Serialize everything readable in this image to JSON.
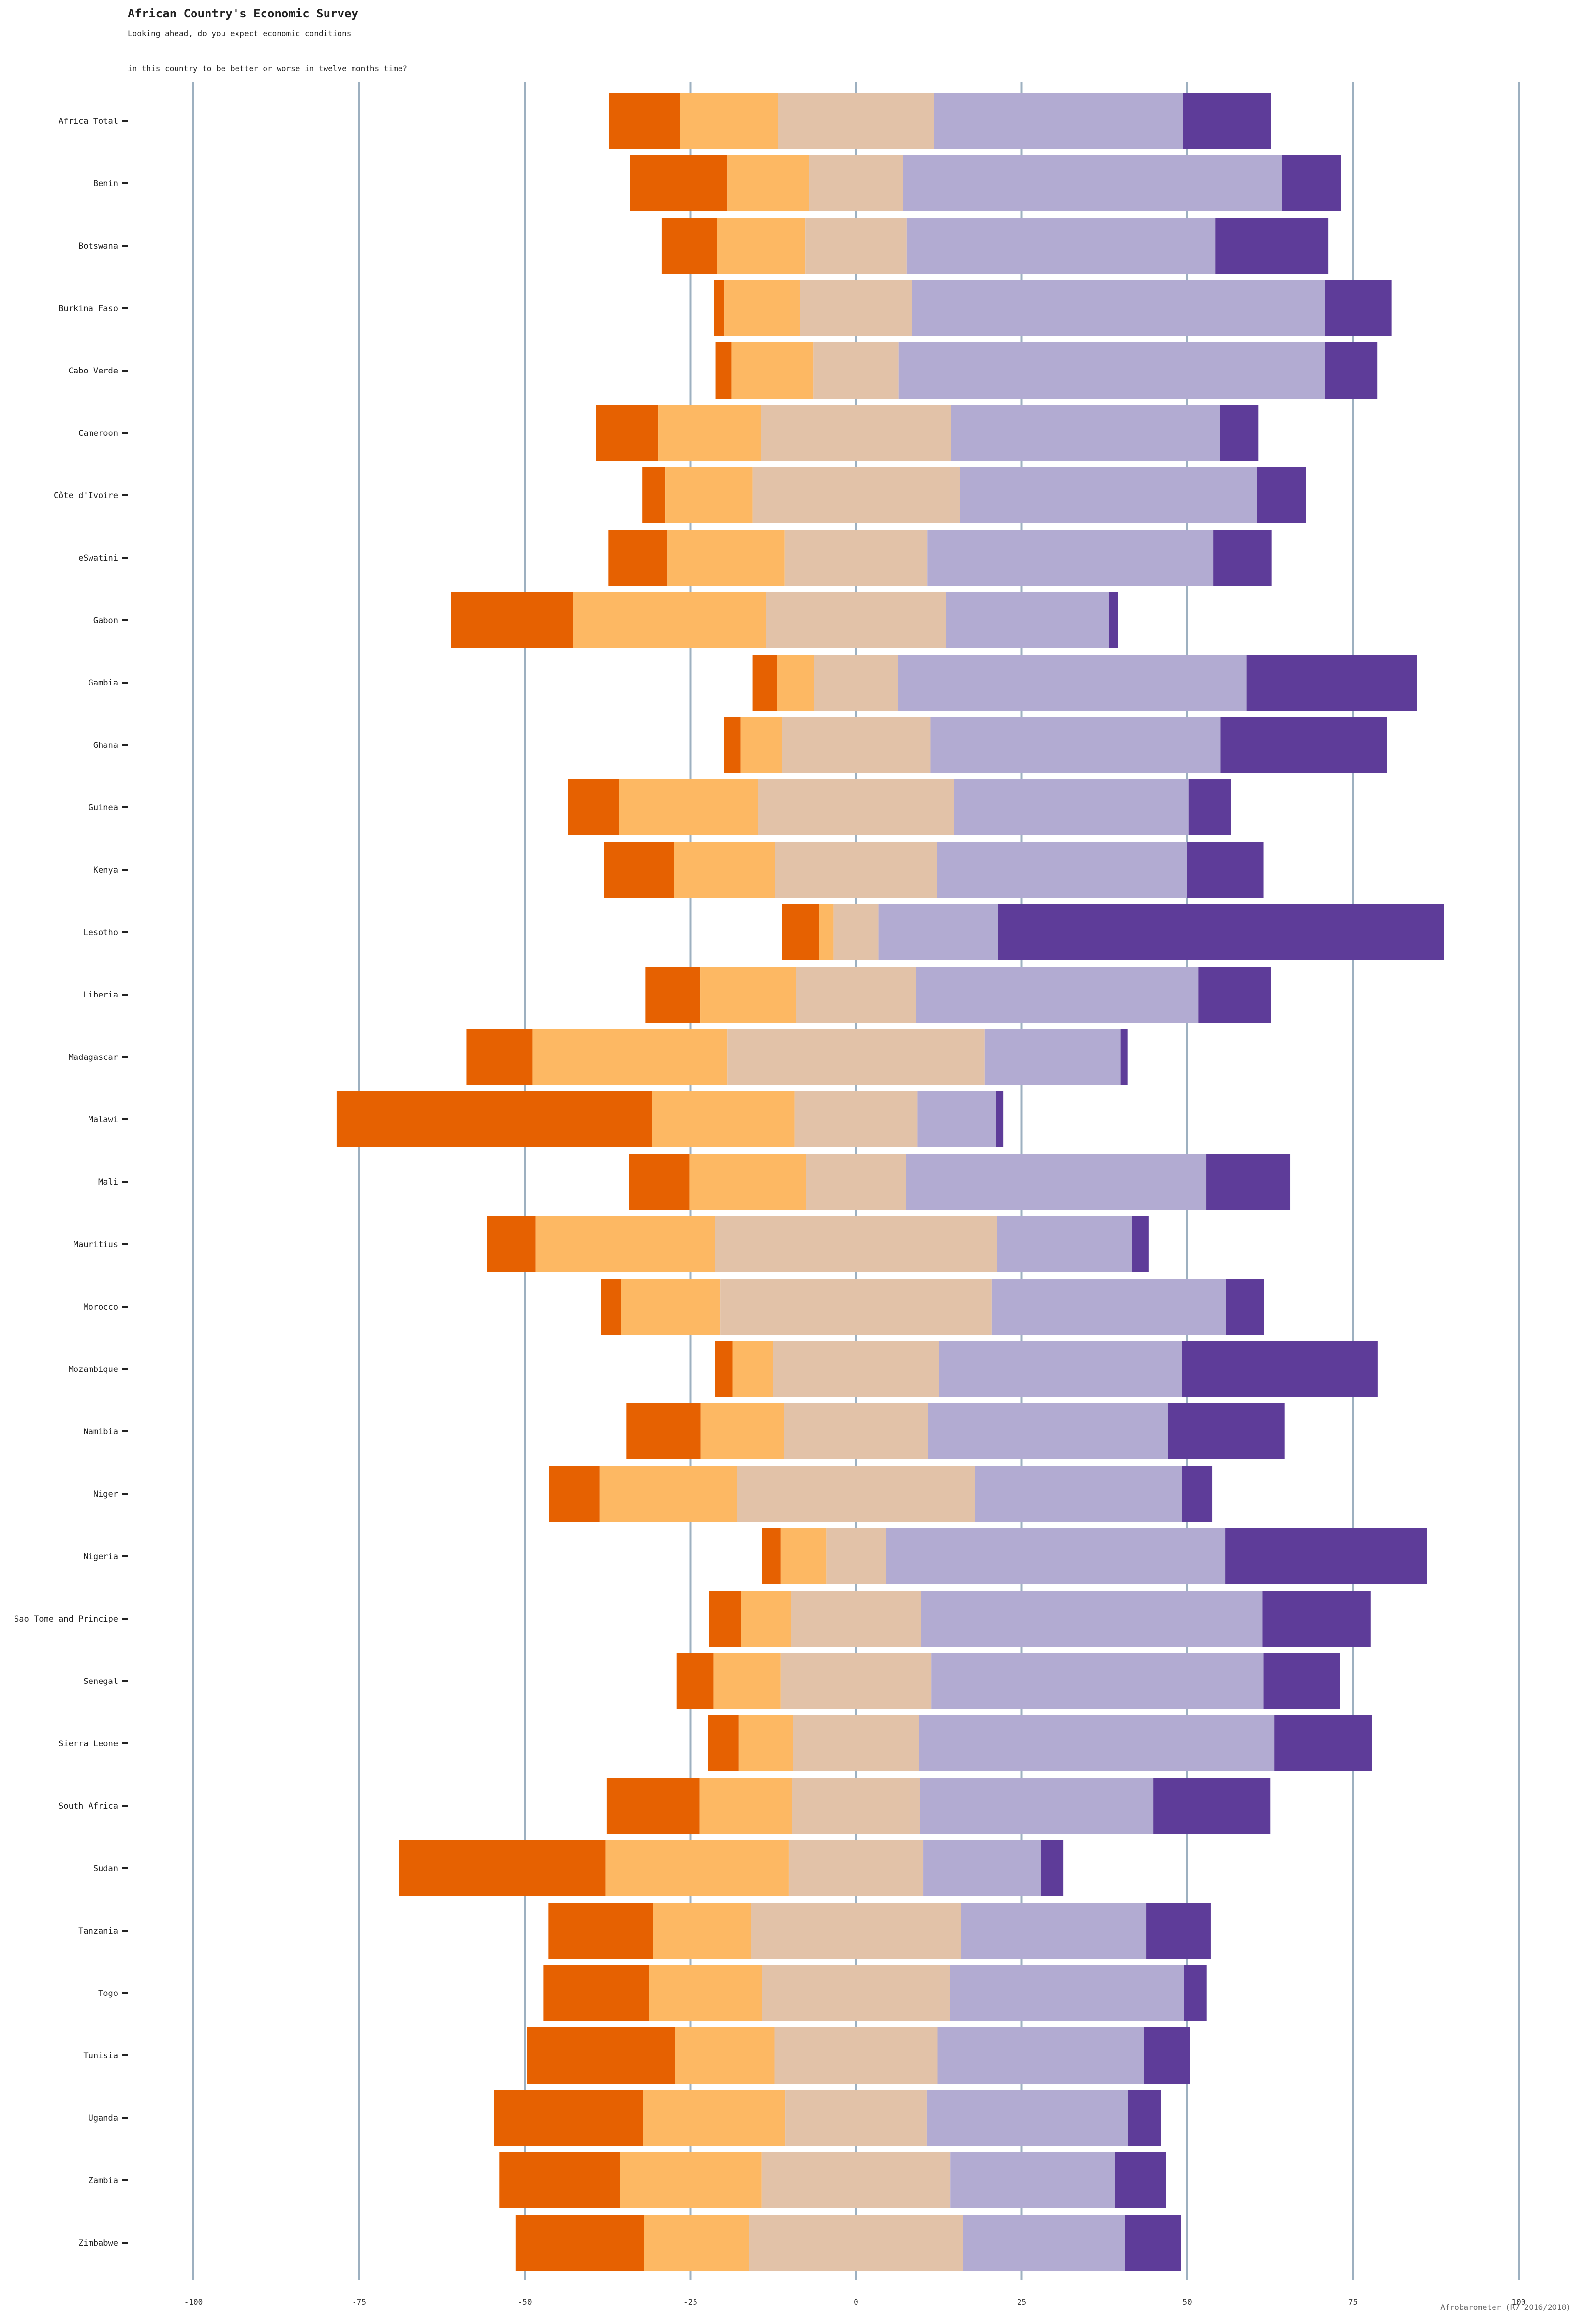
{
  "chart_data": {
    "type": "bar",
    "orientation": "horizontal",
    "stacked": "diverging",
    "title": "African Country's Economic Survey",
    "subtitle_lines": [
      "Looking ahead, do you expect economic conditions",
      "in this country to be better or worse in twelve months time?"
    ],
    "source": "Afrobarometer (R7 2016/2018)",
    "xlim": [
      -100,
      100
    ],
    "xticks": [
      -100,
      -75,
      -50,
      -25,
      0,
      25,
      50,
      75,
      100
    ],
    "grid": "vertical",
    "legend": "none",
    "colors": [
      "#e66101",
      "#fdb863",
      "#e2c2a8",
      "#b2abd2",
      "#5e3c99"
    ],
    "categories": [
      "Africa Total",
      "Benin",
      "Botswana",
      "Burkina Faso",
      "Cabo Verde",
      "Cameroon",
      "Côte d'Ivoire",
      "eSwatini",
      "Gabon",
      "Gambia",
      "Ghana",
      "Guinea",
      "Kenya",
      "Lesotho",
      "Liberia",
      "Madagascar",
      "Malawi",
      "Mali",
      "Mauritius",
      "Morocco",
      "Mozambique",
      "Namibia",
      "Niger",
      "Nigeria",
      "Sao Tome and Principe",
      "Senegal",
      "Sierra Leone",
      "South Africa",
      "Sudan",
      "Tanzania",
      "Togo",
      "Tunisia",
      "Uganda",
      "Zambia",
      "Zimbabwe"
    ],
    "series": [
      {
        "values": [
          10.8,
          14.7,
          8.4,
          1.6,
          2.4,
          9.4,
          3.5,
          8.9,
          18.4,
          3.7,
          2.6,
          7.7,
          10.6,
          5.6,
          8.3,
          10.0,
          47.6,
          9.1,
          7.4,
          3.0,
          2.6,
          11.2,
          7.6,
          2.8,
          4.8,
          5.6,
          4.6,
          14.0,
          31.2,
          15.8,
          15.9,
          22.4,
          22.5,
          18.2,
          19.4
        ]
      },
      {
        "values": [
          14.7,
          12.3,
          13.3,
          11.4,
          12.4,
          15.5,
          13.1,
          17.7,
          29.1,
          5.6,
          6.2,
          21.0,
          15.3,
          2.2,
          14.4,
          29.4,
          21.5,
          17.6,
          27.1,
          15.0,
          6.1,
          12.6,
          20.7,
          6.9,
          7.5,
          10.1,
          8.2,
          13.9,
          27.7,
          14.7,
          17.1,
          15.0,
          21.5,
          21.4,
          15.8
        ]
      },
      {
        "values": [
          23.6,
          14.2,
          15.3,
          16.9,
          12.8,
          28.7,
          31.3,
          21.5,
          27.2,
          12.7,
          22.4,
          29.6,
          24.4,
          6.8,
          18.2,
          38.8,
          18.6,
          15.1,
          42.5,
          41.0,
          25.1,
          21.7,
          36.0,
          9.0,
          19.7,
          22.8,
          19.1,
          19.4,
          20.3,
          31.8,
          28.4,
          24.6,
          21.3,
          28.5,
          32.4
        ]
      },
      {
        "values": [
          37.6,
          57.2,
          46.6,
          62.3,
          64.4,
          40.6,
          44.9,
          43.2,
          24.6,
          52.6,
          43.8,
          35.4,
          37.8,
          18.0,
          42.6,
          20.5,
          11.8,
          45.3,
          20.4,
          35.3,
          36.6,
          36.3,
          31.2,
          51.2,
          51.5,
          50.1,
          53.6,
          35.2,
          17.8,
          27.9,
          35.3,
          31.2,
          30.4,
          24.8,
          24.4
        ]
      },
      {
        "values": [
          13.2,
          8.9,
          17.0,
          10.1,
          7.9,
          5.8,
          7.4,
          8.8,
          1.3,
          25.7,
          25.1,
          6.4,
          11.5,
          67.3,
          11.0,
          1.1,
          1.1,
          12.7,
          2.5,
          5.8,
          29.6,
          17.5,
          4.6,
          30.5,
          16.3,
          11.5,
          14.7,
          17.6,
          3.3,
          9.7,
          3.4,
          6.9,
          5.0,
          7.7,
          8.4
        ]
      }
    ]
  }
}
